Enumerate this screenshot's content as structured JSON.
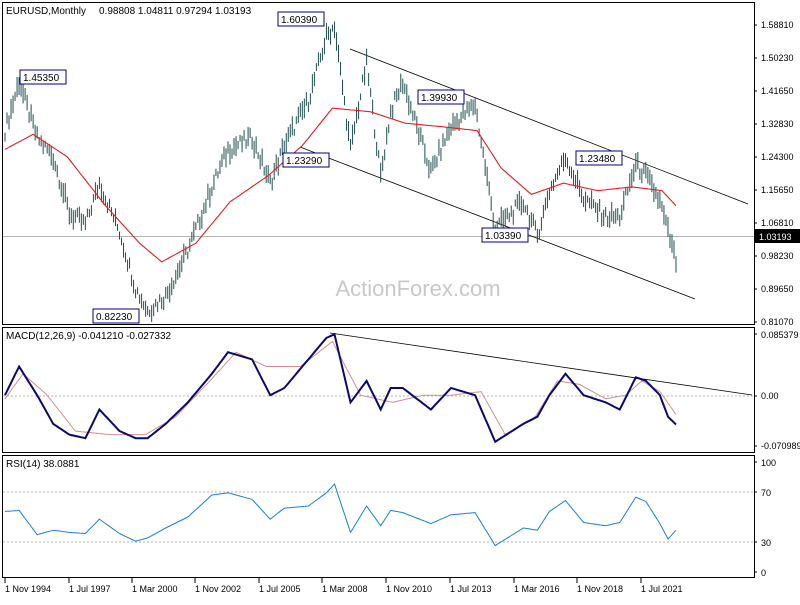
{
  "colors": {
    "price": "#1f4f4f",
    "ma": "#e02020",
    "macd": "#0a0a6e",
    "signal": "#d09090",
    "rsi": "#1a7fd0",
    "channel": "#000000",
    "grid_dotted": "#9a9a9a",
    "label_border": "#000080"
  },
  "chart_data": [
    {
      "type": "line",
      "title": "EURUSD,Monthly",
      "ohlc_header": "0.98808 1.04811 0.97294 1.03193",
      "series": [
        {
          "style": "bar",
          "x": [
            "1994-11",
            "1995-06",
            "1996-03",
            "1996-11",
            "1997-07",
            "1998-03",
            "1998-10",
            "1999-08",
            "2000-04",
            "2000-10",
            "2001-07",
            "2002-06",
            "2003-06",
            "2004-02",
            "2005-02",
            "2005-11",
            "2006-06",
            "2007-06",
            "2008-03",
            "2008-07",
            "2009-03",
            "2009-11",
            "2010-06",
            "2010-11",
            "2011-05",
            "2012-07",
            "2013-05",
            "2014-05",
            "2015-03",
            "2016-05",
            "2016-12",
            "2017-06",
            "2018-02",
            "2018-11",
            "2019-10",
            "2020-05",
            "2021-01",
            "2021-06",
            "2022-01",
            "2022-05",
            "2022-09"
          ],
          "values": [
            1.32,
            1.45,
            1.3,
            1.25,
            1.1,
            1.07,
            1.18,
            1.05,
            0.9,
            0.84,
            0.88,
            1.0,
            1.17,
            1.27,
            1.3,
            1.18,
            1.28,
            1.4,
            1.57,
            1.6,
            1.27,
            1.5,
            1.2,
            1.37,
            1.45,
            1.21,
            1.33,
            1.39,
            1.06,
            1.13,
            1.04,
            1.16,
            1.25,
            1.14,
            1.09,
            1.09,
            1.23,
            1.2,
            1.13,
            1.05,
            0.97
          ]
        },
        {
          "name": "MA",
          "x": [
            "1994-11",
            "1996-01",
            "1997-06",
            "1999-01",
            "2000-06",
            "2001-05",
            "2002-10",
            "2004-03",
            "2005-10",
            "2007-03",
            "2008-06",
            "2010-01",
            "2011-06",
            "2013-01",
            "2014-06",
            "2015-06",
            "2016-09",
            "2018-01",
            "2019-06",
            "2020-11",
            "2022-02",
            "2022-09"
          ],
          "values": [
            1.27,
            1.31,
            1.25,
            1.12,
            1.02,
            0.97,
            1.02,
            1.13,
            1.2,
            1.28,
            1.38,
            1.37,
            1.34,
            1.33,
            1.32,
            1.22,
            1.15,
            1.18,
            1.16,
            1.17,
            1.16,
            1.12
          ]
        }
      ],
      "labels": {
        "p1": "1.45350",
        "p2": "0.82230",
        "p3": "1.60390",
        "p4": "1.23290",
        "p5": "1.39930",
        "p6": "1.03390",
        "p7": "1.23480"
      },
      "ylim": [
        0.81,
        1.62
      ],
      "yticks": [
        "1.58810",
        "1.50230",
        "1.41650",
        "1.32830",
        "1.24300",
        "1.15650",
        "1.06810",
        "0.98230",
        "0.89650",
        "0.81070"
      ],
      "current_price": "1.03193",
      "watermark": "ActionForex.com"
    },
    {
      "type": "line",
      "title": "MACD(12,26,9) -0.041210 -0.027332",
      "series": [
        {
          "name": "MACD",
          "x": [
            "1994-11",
            "1995-06",
            "1996-03",
            "1996-11",
            "1997-07",
            "1998-03",
            "1998-10",
            "1999-08",
            "2000-04",
            "2000-10",
            "2001-07",
            "2002-06",
            "2003-06",
            "2004-02",
            "2005-02",
            "2005-11",
            "2006-06",
            "2007-06",
            "2008-03",
            "2008-07",
            "2009-03",
            "2009-11",
            "2010-06",
            "2010-11",
            "2011-05",
            "2012-07",
            "2013-05",
            "2014-05",
            "2015-03",
            "2016-05",
            "2016-12",
            "2017-06",
            "2018-02",
            "2018-11",
            "2019-10",
            "2020-05",
            "2021-01",
            "2021-06",
            "2022-01",
            "2022-05",
            "2022-09"
          ],
          "values": [
            0.0,
            0.04,
            0.0,
            -0.04,
            -0.055,
            -0.06,
            -0.02,
            -0.05,
            -0.06,
            -0.06,
            -0.04,
            -0.01,
            0.03,
            0.06,
            0.05,
            0.0,
            0.01,
            0.05,
            0.08,
            0.085,
            -0.01,
            0.02,
            -0.02,
            0.01,
            0.01,
            -0.02,
            0.01,
            0.0,
            -0.065,
            -0.04,
            -0.03,
            0.0,
            0.03,
            0.0,
            -0.01,
            -0.02,
            0.025,
            0.02,
            0.0,
            -0.03,
            -0.041
          ]
        },
        {
          "name": "Signal",
          "x": [
            "1994-11",
            "1995-08",
            "1996-08",
            "1997-10",
            "1999-03",
            "2000-09",
            "2001-12",
            "2003-05",
            "2004-06",
            "2005-09",
            "2007-02",
            "2008-06",
            "2009-08",
            "2010-12",
            "2012-03",
            "2013-05",
            "2014-08",
            "2015-08",
            "2016-11",
            "2017-10",
            "2018-09",
            "2019-10",
            "2020-08",
            "2021-04",
            "2022-01",
            "2022-09"
          ],
          "values": [
            -0.005,
            0.03,
            0.0,
            -0.05,
            -0.055,
            -0.055,
            -0.03,
            0.02,
            0.06,
            0.04,
            0.04,
            0.075,
            0.0,
            -0.01,
            0.0,
            0.0,
            0.005,
            -0.055,
            -0.03,
            0.02,
            0.015,
            -0.005,
            0.0,
            0.02,
            0.005,
            -0.027
          ]
        }
      ],
      "ylim": [
        -0.0709,
        0.0854
      ],
      "yticks": [
        "0.085379",
        "0.00",
        "-0.070989"
      ]
    },
    {
      "type": "line",
      "title": "RSI(14) 38.0881",
      "series": [
        {
          "name": "RSI",
          "x": [
            "1994-11",
            "1995-06",
            "1996-03",
            "1996-11",
            "1997-07",
            "1998-03",
            "1998-10",
            "1999-08",
            "2000-04",
            "2000-10",
            "2001-07",
            "2002-06",
            "2003-06",
            "2004-02",
            "2005-02",
            "2005-11",
            "2006-06",
            "2007-06",
            "2008-03",
            "2008-07",
            "2009-03",
            "2009-11",
            "2010-06",
            "2010-11",
            "2011-05",
            "2012-07",
            "2013-05",
            "2014-05",
            "2015-03",
            "2016-05",
            "2016-12",
            "2017-06",
            "2018-02",
            "2018-11",
            "2019-10",
            "2020-05",
            "2021-01",
            "2021-06",
            "2022-01",
            "2022-05",
            "2022-09"
          ],
          "values": [
            55,
            56,
            34,
            38,
            36,
            35,
            48,
            35,
            28,
            31,
            40,
            50,
            70,
            72,
            66,
            48,
            58,
            60,
            72,
            80,
            36,
            60,
            42,
            56,
            54,
            44,
            52,
            54,
            24,
            40,
            38,
            55,
            65,
            45,
            42,
            45,
            68,
            64,
            44,
            30,
            38
          ]
        }
      ],
      "ylim": [
        0,
        100
      ],
      "yticks": [
        "100",
        "70",
        "30",
        "0"
      ],
      "levels": [
        70,
        30
      ]
    }
  ],
  "xaxis": {
    "ticks": [
      "1 Nov 1994",
      "1 Jul 1997",
      "1 Mar 2000",
      "1 Nov 2002",
      "1 Jul 2005",
      "1 Mar 2008",
      "1 Nov 2010",
      "1 Jul 2013",
      "1 Mar 2016",
      "1 Nov 2018",
      "1 Jul 2021"
    ]
  }
}
